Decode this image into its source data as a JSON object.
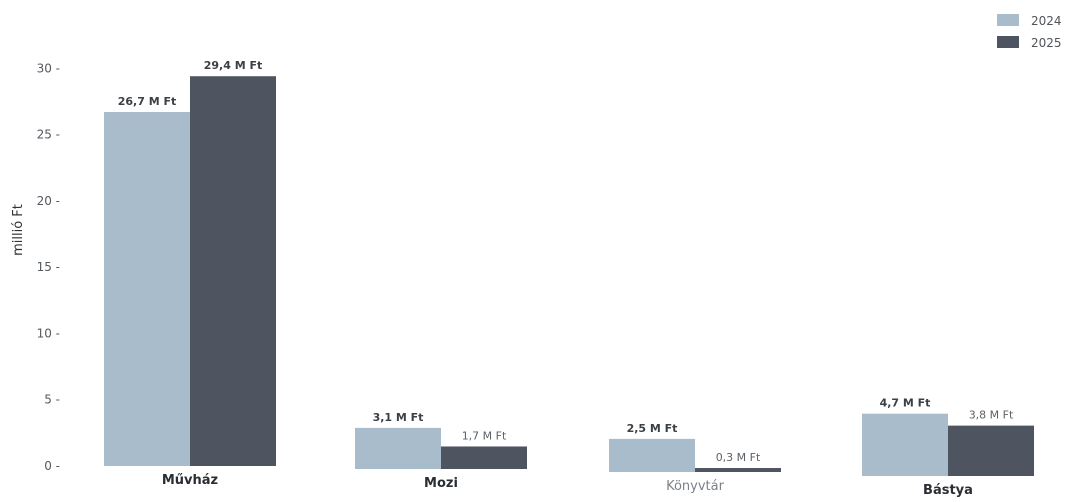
{
  "chart_data": {
    "type": "bar",
    "categories": [
      "Művház",
      "Mozi",
      "Könyvtár",
      "Bástya"
    ],
    "series": [
      {
        "name": "2024",
        "color": "#a9bccc",
        "values": [
          26.7,
          3.1,
          2.5,
          4.7
        ],
        "labels": [
          "26,7 M Ft",
          "3,1 M Ft",
          "2,5 M Ft",
          "4,7 M Ft"
        ]
      },
      {
        "name": "2025",
        "color": "#4e5560",
        "values": [
          29.4,
          1.7,
          0.3,
          3.8
        ],
        "labels": [
          "29,4 M Ft",
          "1,7 M Ft",
          "0,3 M Ft",
          "3,8 M Ft"
        ]
      }
    ],
    "title": "",
    "xlabel": "",
    "ylabel": "millió Ft",
    "ylim": [
      0,
      31
    ],
    "yticks": [
      0,
      5,
      10,
      15,
      20,
      25,
      30
    ],
    "ytick_labels": [
      "0 -",
      "5 -",
      "10 -",
      "15 -",
      "20 -",
      "25 -",
      "30 -"
    ],
    "grid": false,
    "legend_position": "top-right"
  }
}
